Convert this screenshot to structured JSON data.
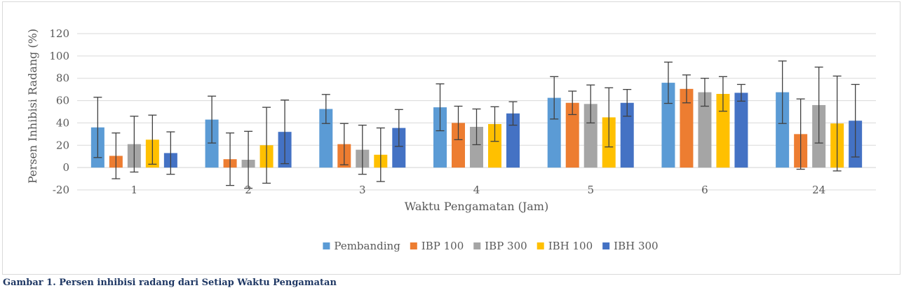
{
  "chart_data": {
    "type": "bar",
    "xlabel": "Waktu Pengamatan (Jam)",
    "ylabel": "Persen Inhibisi Radang (%)",
    "ylim": [
      -20,
      120
    ],
    "yticks": [
      -20,
      0,
      20,
      40,
      60,
      80,
      100,
      120
    ],
    "categories": [
      "1",
      "2",
      "3",
      "4",
      "5",
      "6",
      "24"
    ],
    "grid": true,
    "legend_position": "bottom",
    "series": [
      {
        "name": "Pembanding",
        "color": "#5b9bd5",
        "values": [
          36,
          43,
          52.5,
          54,
          62.5,
          76,
          67.5
        ],
        "error": [
          27,
          21,
          13,
          21,
          19,
          18.5,
          28
        ]
      },
      {
        "name": "IBP 100",
        "color": "#ed7d31",
        "values": [
          10.5,
          7.5,
          21,
          40,
          58,
          70.5,
          30
        ],
        "error": [
          20.5,
          23.5,
          18.5,
          15,
          10.5,
          12.5,
          31.5
        ]
      },
      {
        "name": "IBP 300",
        "color": "#a5a5a5",
        "values": [
          21,
          7,
          16,
          36.5,
          57,
          67.5,
          56
        ],
        "error": [
          25,
          25.5,
          22,
          16,
          17,
          12.5,
          34
        ]
      },
      {
        "name": "IBH 100",
        "color": "#ffc000",
        "values": [
          25,
          20,
          11.5,
          39,
          45,
          66,
          39.5
        ],
        "error": [
          22,
          34,
          24,
          15.5,
          26.5,
          15.5,
          42.5
        ]
      },
      {
        "name": "IBH 300",
        "color": "#4472c4",
        "values": [
          13,
          32,
          35.5,
          48.5,
          58,
          67,
          42
        ],
        "error": [
          19,
          28.5,
          16.5,
          10.5,
          12,
          7.5,
          32.5
        ]
      }
    ]
  },
  "caption": "Gambar 1. Persen inhibisi radang dari Setiap Waktu Pengamatan"
}
